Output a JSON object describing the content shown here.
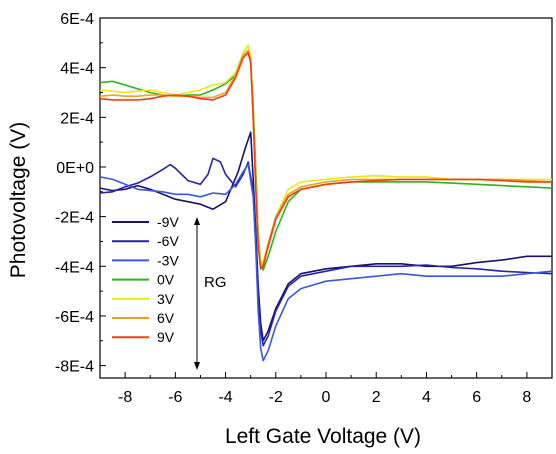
{
  "chart_data": {
    "type": "line",
    "xlabel": "Left Gate Voltage (V)",
    "ylabel": "Photovoltage (V)",
    "xlim": [
      -9,
      9
    ],
    "ylim": [
      -0.00085,
      0.0006
    ],
    "xticks": [
      -8,
      -6,
      -4,
      -2,
      0,
      2,
      4,
      6,
      8
    ],
    "xtick_labels": [
      "-8",
      "-6",
      "-4",
      "-2",
      "0",
      "2",
      "4",
      "6",
      "8"
    ],
    "yticks": [
      0.0006,
      0.0004,
      0.0002,
      0,
      -0.0002,
      -0.0004,
      -0.0006,
      -0.0008
    ],
    "ytick_labels": [
      "6E-4",
      "4E-4",
      "2E-4",
      "0E+0",
      "-2E-4",
      "-4E-4",
      "-6E-4",
      "-8E-4"
    ],
    "grid": false,
    "legend_position": "lower-left",
    "annotation": {
      "text": "RG",
      "arrow": "double-headed vertical"
    },
    "series": [
      {
        "name": "-9V",
        "color": "#1a1070",
        "x": [
          -9,
          -8.5,
          -8,
          -7.5,
          -7,
          -6.5,
          -6,
          -5.5,
          -5,
          -4.5,
          -4,
          -3.5,
          -3.2,
          -3.0,
          -2.9,
          -2.8,
          -2.7,
          -2.6,
          -2.5,
          -2.3,
          -2.0,
          -1.5,
          -1,
          0,
          1,
          2,
          3,
          4,
          5,
          6,
          7,
          8,
          9
        ],
        "y": [
          -8.5e-05,
          -9.5e-05,
          -9e-05,
          -7.5e-05,
          -9e-05,
          -0.00011,
          -0.00013,
          -0.00014,
          -0.00015,
          -0.00017,
          -0.00014,
          -2e-05,
          8e-05,
          0.00014,
          -5e-05,
          -0.00025,
          -0.00048,
          -0.00063,
          -0.0007,
          -0.00066,
          -0.00057,
          -0.00047,
          -0.00043,
          -0.00041,
          -0.0004,
          -0.00039,
          -0.00039,
          -0.0004,
          -0.0004,
          -0.000385,
          -0.000375,
          -0.00036,
          -0.00036
        ]
      },
      {
        "name": "-6V",
        "color": "#2424a8",
        "x": [
          -9,
          -8.5,
          -8,
          -7.5,
          -7,
          -6.5,
          -6.2,
          -6,
          -5.5,
          -5,
          -4.7,
          -4.5,
          -4.2,
          -4,
          -3.6,
          -3.3,
          -3.1,
          -2.9,
          -2.8,
          -2.7,
          -2.6,
          -2.5,
          -2.3,
          -2,
          -1.5,
          -1,
          0,
          1,
          2,
          3,
          4,
          5,
          6,
          7,
          8,
          9
        ],
        "y": [
          -0.000105,
          -0.0001,
          -8e-05,
          -6.5e-05,
          -4e-05,
          -1e-05,
          1e-05,
          -5e-06,
          -5.5e-05,
          -7e-05,
          -3e-05,
          3.5e-05,
          2e-05,
          -3e-05,
          -8e-05,
          -3e-05,
          2e-05,
          -0.0001,
          -0.00028,
          -0.00052,
          -0.00066,
          -0.00072,
          -0.00068,
          -0.00058,
          -0.00048,
          -0.00044,
          -0.00042,
          -0.0004,
          -0.0004,
          -0.0004,
          -0.000395,
          -0.000405,
          -0.00041,
          -0.00042,
          -0.000425,
          -0.00043
        ]
      },
      {
        "name": "-3V",
        "color": "#3a58d8",
        "x": [
          -9,
          -8.5,
          -8,
          -7.5,
          -7,
          -6.5,
          -6,
          -5.5,
          -5,
          -4.5,
          -4,
          -3.6,
          -3.3,
          -3.1,
          -2.9,
          -2.8,
          -2.7,
          -2.6,
          -2.5,
          -2.3,
          -2,
          -1.5,
          -1,
          0,
          1,
          2,
          3,
          4,
          5,
          6,
          7,
          8,
          9
        ],
        "y": [
          -4e-05,
          -5e-05,
          -7e-05,
          -9e-05,
          -9.5e-05,
          -0.0001,
          -0.00011,
          -0.00011,
          -0.00012,
          -0.000105,
          -0.00011,
          -7e-05,
          -2e-05,
          1e-05,
          -0.00012,
          -0.00032,
          -0.00058,
          -0.00073,
          -0.00078,
          -0.00074,
          -0.00064,
          -0.00053,
          -0.00049,
          -0.00046,
          -0.00045,
          -0.00044,
          -0.00043,
          -0.00044,
          -0.00044,
          -0.00044,
          -0.00044,
          -0.00043,
          -0.00042
        ]
      },
      {
        "name": "0V",
        "color": "#2db51f",
        "x": [
          -9,
          -8.5,
          -8,
          -7.5,
          -7,
          -6.5,
          -6,
          -5.5,
          -5,
          -4.5,
          -4,
          -3.6,
          -3.3,
          -3.1,
          -3.0,
          -2.9,
          -2.8,
          -2.7,
          -2.6,
          -2.5,
          -2.3,
          -2,
          -1.5,
          -1,
          0,
          1,
          2,
          3,
          4,
          5,
          6,
          7,
          8,
          9
        ],
        "y": [
          0.00034,
          0.000345,
          0.00033,
          0.000315,
          0.0003,
          0.00029,
          0.000285,
          0.00029,
          0.00029,
          0.00031,
          0.000335,
          0.00037,
          0.00044,
          0.00046,
          0.00043,
          0.00025,
          0.0,
          -0.00027,
          -0.00039,
          -0.000415,
          -0.00036,
          -0.00026,
          -0.00014,
          -9e-05,
          -7e-05,
          -6e-05,
          -6e-05,
          -6e-05,
          -6e-05,
          -6.5e-05,
          -7e-05,
          -7.5e-05,
          -8e-05,
          -8.5e-05
        ]
      },
      {
        "name": "3V",
        "color": "#e8e81a",
        "x": [
          -9,
          -8.5,
          -8,
          -7.5,
          -7,
          -6.5,
          -6,
          -5.5,
          -5,
          -4.5,
          -4,
          -3.6,
          -3.3,
          -3.1,
          -3.0,
          -2.9,
          -2.8,
          -2.7,
          -2.6,
          -2.5,
          -2.3,
          -2,
          -1.5,
          -1,
          0,
          1,
          2,
          3,
          4,
          5,
          6,
          7,
          8,
          9
        ],
        "y": [
          0.00031,
          0.000305,
          0.0003,
          0.000305,
          0.00031,
          0.0003,
          0.00029,
          0.0003,
          0.00031,
          0.00033,
          0.00034,
          0.00038,
          0.00046,
          0.00049,
          0.00044,
          0.00022,
          -4e-05,
          -0.00029,
          -0.000395,
          -0.00038,
          -0.00031,
          -0.0002,
          -9e-05,
          -6e-05,
          -5e-05,
          -4e-05,
          -3.5e-05,
          -4e-05,
          -4e-05,
          -5e-05,
          -5e-05,
          -5e-05,
          -5e-05,
          -5e-05
        ]
      },
      {
        "name": "6V",
        "color": "#f0a020",
        "x": [
          -9,
          -8.5,
          -8,
          -7.5,
          -7,
          -6.5,
          -6,
          -5.5,
          -5,
          -4.5,
          -4,
          -3.6,
          -3.3,
          -3.1,
          -3.0,
          -2.9,
          -2.8,
          -2.7,
          -2.6,
          -2.5,
          -2.3,
          -2,
          -1.5,
          -1,
          0,
          1,
          2,
          3,
          4,
          5,
          6,
          7,
          8,
          9
        ],
        "y": [
          0.000285,
          0.00029,
          0.000285,
          0.000285,
          0.00029,
          0.00029,
          0.000285,
          0.000285,
          0.00028,
          0.00028,
          0.0003,
          0.00037,
          0.00045,
          0.00047,
          0.00043,
          0.0002,
          -7e-05,
          -0.00031,
          -0.00041,
          -0.00039,
          -0.00031,
          -0.0002,
          -0.00011,
          -8e-05,
          -6e-05,
          -5e-05,
          -5e-05,
          -5e-05,
          -5e-05,
          -5e-05,
          -5e-05,
          -5e-05,
          -5.5e-05,
          -6e-05
        ]
      },
      {
        "name": "9V",
        "color": "#f04010",
        "x": [
          -9,
          -8.5,
          -8,
          -7.5,
          -7,
          -6.5,
          -6,
          -5.5,
          -5,
          -4.5,
          -4,
          -3.6,
          -3.3,
          -3.1,
          -3.0,
          -2.9,
          -2.8,
          -2.7,
          -2.6,
          -2.5,
          -2.3,
          -2,
          -1.5,
          -1,
          0,
          1,
          2,
          3,
          4,
          5,
          6,
          7,
          8,
          9
        ],
        "y": [
          0.000275,
          0.00027,
          0.00027,
          0.00027,
          0.000275,
          0.000285,
          0.00029,
          0.000285,
          0.000275,
          0.00027,
          0.00029,
          0.00036,
          0.00044,
          0.00046,
          0.00042,
          0.0002,
          -8e-05,
          -0.00032,
          -0.00041,
          -0.0004,
          -0.00032,
          -0.00021,
          -0.00012,
          -9e-05,
          -7e-05,
          -6e-05,
          -5.5e-05,
          -5e-05,
          -5e-05,
          -5e-05,
          -5e-05,
          -5.5e-05,
          -6e-05,
          -6e-05
        ]
      }
    ]
  }
}
